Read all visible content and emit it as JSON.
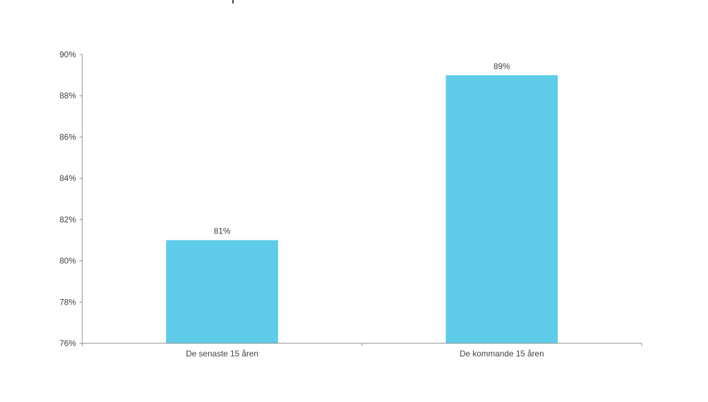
{
  "chart_data": {
    "type": "bar",
    "categories": [
      "De senaste 15 åren",
      "De kommande 15 åren"
    ],
    "values": [
      81,
      89
    ],
    "value_labels": [
      "81%",
      "89%"
    ],
    "title": "",
    "xlabel": "",
    "ylabel": "",
    "ylim": [
      76,
      90
    ],
    "y_ticks": [
      76,
      78,
      80,
      82,
      84,
      86,
      88,
      90
    ],
    "y_tick_labels": [
      "76%",
      "78%",
      "80%",
      "82%",
      "84%",
      "86%",
      "88%",
      "90%"
    ],
    "grid": false,
    "legend": "none",
    "colors": {
      "bar": "#5ecce8",
      "axis": "#8c8c8c",
      "text": "#404040"
    }
  }
}
